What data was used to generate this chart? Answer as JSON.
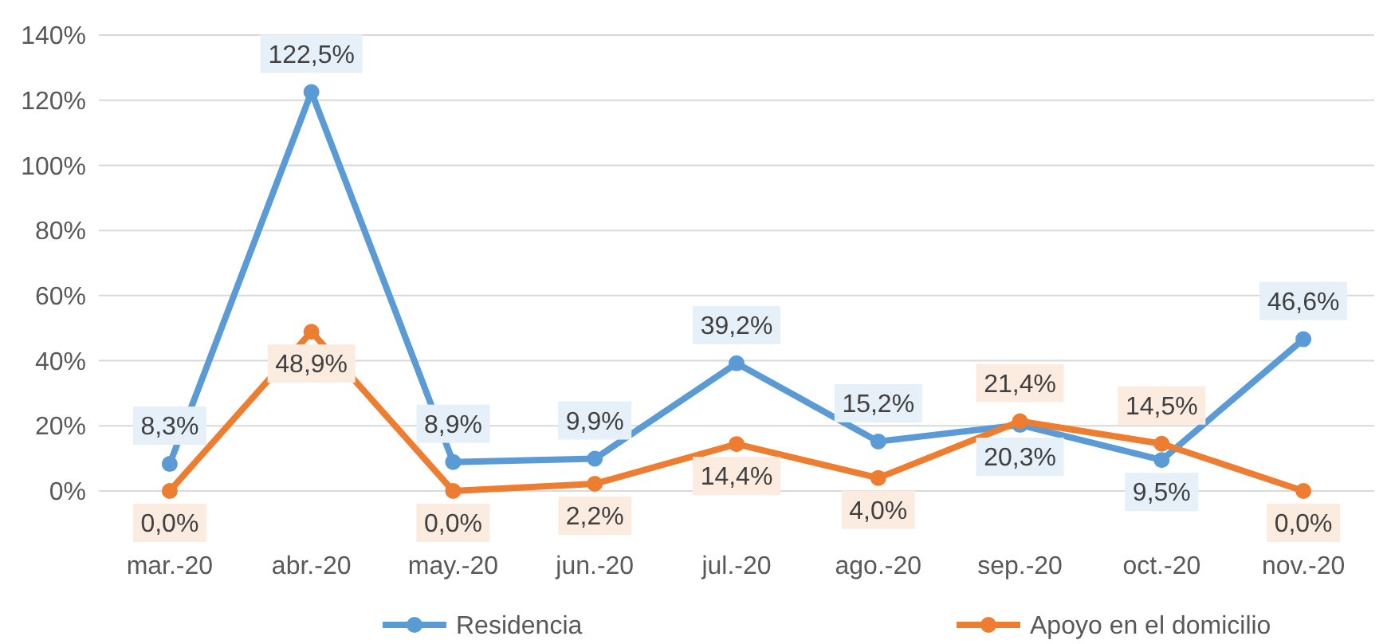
{
  "chart_data": {
    "type": "line",
    "categories": [
      "mar.-20",
      "abr.-20",
      "may.-20",
      "jun.-20",
      "jul.-20",
      "ago.-20",
      "sep.-20",
      "oct.-20",
      "nov.-20"
    ],
    "series": [
      {
        "name": "Residencia",
        "color": "#5b9bd5",
        "values": [
          8.3,
          122.5,
          8.9,
          9.9,
          39.2,
          15.2,
          20.3,
          9.5,
          46.6
        ],
        "value_labels": [
          "8,3%",
          "122,5%",
          "8,9%",
          "9,9%",
          "39,2%",
          "15,2%",
          "20,3%",
          "9,5%",
          "46,6%"
        ]
      },
      {
        "name": "Apoyo en el domicilio",
        "color": "#ed7d31",
        "values": [
          0,
          48.9,
          0,
          2.2,
          14.4,
          4.0,
          21.4,
          14.5,
          0.0
        ],
        "value_labels": [
          "0,0%",
          "48,9%",
          "0,0%",
          "2,2%",
          "14,4%",
          "4,0%",
          "21,4%",
          "14,5%",
          "0,0%"
        ]
      }
    ],
    "ylim": [
      0,
      140
    ],
    "yticks": [
      {
        "value": 0,
        "label": "0%"
      },
      {
        "value": 20,
        "label": "20%"
      },
      {
        "value": 40,
        "label": "40%"
      },
      {
        "value": 60,
        "label": "60%"
      },
      {
        "value": 80,
        "label": "80%"
      },
      {
        "value": 100,
        "label": "100%"
      },
      {
        "value": 120,
        "label": "120%"
      },
      {
        "value": 140,
        "label": "140%"
      }
    ],
    "grid": "y",
    "legend": "bottom",
    "marker": "circle",
    "line_style": "solid"
  }
}
